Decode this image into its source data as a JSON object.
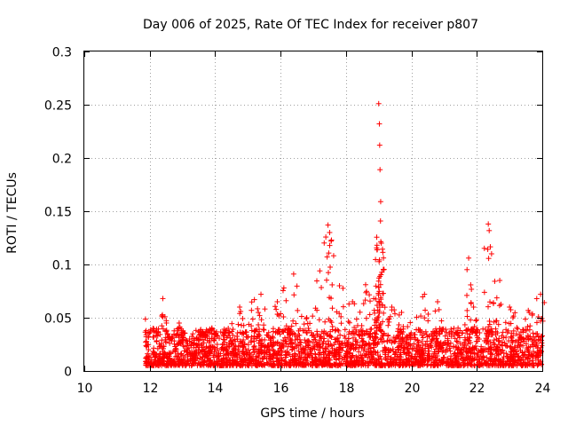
{
  "chart_data": {
    "type": "scatter",
    "title": "Day 006 of 2025, Rate Of TEC Index for receiver p807",
    "xlabel": "GPS time / hours",
    "ylabel": "ROTI / TECUs",
    "xlim": [
      10,
      24
    ],
    "ylim": [
      0,
      0.3
    ],
    "xticks": [
      "10",
      "12",
      "14",
      "16",
      "18",
      "20",
      "22",
      "24"
    ],
    "yticks": [
      "0",
      "0.05",
      "0.1",
      "0.15",
      "0.2",
      "0.25",
      "0.3"
    ],
    "grid": true,
    "marker": "+",
    "series_color": "#ff0000",
    "data_start_hour": 11.85,
    "data_end_hour": 24.0,
    "typical_range": [
      0.005,
      0.035
    ],
    "peaks": [
      {
        "x": 12.1,
        "y": 0.04
      },
      {
        "x": 12.4,
        "y": 0.068
      },
      {
        "x": 12.9,
        "y": 0.045
      },
      {
        "x": 13.6,
        "y": 0.033
      },
      {
        "x": 13.9,
        "y": 0.04
      },
      {
        "x": 14.4,
        "y": 0.04
      },
      {
        "x": 14.75,
        "y": 0.06
      },
      {
        "x": 15.2,
        "y": 0.067
      },
      {
        "x": 15.4,
        "y": 0.072
      },
      {
        "x": 15.9,
        "y": 0.065
      },
      {
        "x": 16.1,
        "y": 0.078
      },
      {
        "x": 16.4,
        "y": 0.091
      },
      {
        "x": 16.8,
        "y": 0.05
      },
      {
        "x": 17.2,
        "y": 0.094
      },
      {
        "x": 17.45,
        "y": 0.137
      },
      {
        "x": 17.5,
        "y": 0.13
      },
      {
        "x": 17.8,
        "y": 0.08
      },
      {
        "x": 18.2,
        "y": 0.065
      },
      {
        "x": 18.6,
        "y": 0.081
      },
      {
        "x": 18.85,
        "y": 0.068
      },
      {
        "x": 19.0,
        "y": 0.251
      },
      {
        "x": 19.02,
        "y": 0.232
      },
      {
        "x": 19.03,
        "y": 0.212
      },
      {
        "x": 19.04,
        "y": 0.189
      },
      {
        "x": 19.06,
        "y": 0.159
      },
      {
        "x": 19.08,
        "y": 0.12
      },
      {
        "x": 19.4,
        "y": 0.06
      },
      {
        "x": 19.7,
        "y": 0.055
      },
      {
        "x": 20.4,
        "y": 0.072
      },
      {
        "x": 20.8,
        "y": 0.065
      },
      {
        "x": 21.3,
        "y": 0.04
      },
      {
        "x": 21.75,
        "y": 0.106
      },
      {
        "x": 21.9,
        "y": 0.06
      },
      {
        "x": 22.35,
        "y": 0.138
      },
      {
        "x": 22.45,
        "y": 0.11
      },
      {
        "x": 22.7,
        "y": 0.085
      },
      {
        "x": 23.0,
        "y": 0.06
      },
      {
        "x": 23.6,
        "y": 0.055
      },
      {
        "x": 23.95,
        "y": 0.072
      }
    ]
  }
}
